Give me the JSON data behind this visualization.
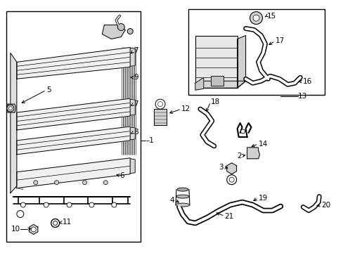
{
  "background_color": "#ffffff",
  "line_color": "#000000",
  "text_color": "#000000",
  "fig_width": 4.89,
  "fig_height": 3.6,
  "dpi": 100
}
